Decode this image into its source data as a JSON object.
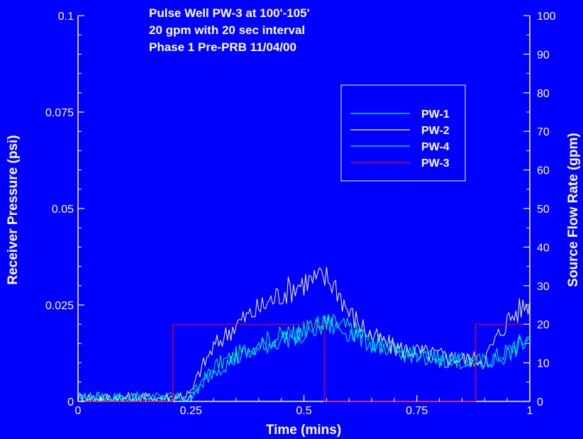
{
  "chart_data": {
    "type": "line",
    "title_lines": [
      "Pulse Well PW-3 at 100'-105'",
      "20 gpm with 20 sec  interval",
      "Phase 1 Pre-PRB   11/04/00"
    ],
    "xlabel": "Time (mins)",
    "ylabel_left": "Receiver Pressure (psi)",
    "ylabel_right": "Source Flow Rate (gpm)",
    "xlim": [
      0,
      1
    ],
    "ylim_left": [
      0,
      0.1
    ],
    "ylim_right": [
      0,
      100
    ],
    "x_ticks": [
      "0",
      "0.25",
      "0.5",
      "0.75",
      "1"
    ],
    "y_left_ticks": [
      "0",
      "0.025",
      "0.05",
      "0.075",
      "0.1"
    ],
    "y_right_ticks": [
      "0",
      "10",
      "20",
      "30",
      "40",
      "50",
      "60",
      "70",
      "80",
      "90",
      "100"
    ],
    "legend_position": "top-right",
    "series": [
      {
        "name": "PW-1",
        "axis": "left",
        "color": "#00ff7f",
        "x": [
          0,
          0.1,
          0.2,
          0.25,
          0.3,
          0.35,
          0.4,
          0.45,
          0.5,
          0.55,
          0.6,
          0.65,
          0.7,
          0.75,
          0.8,
          0.85,
          0.9,
          0.95,
          1.0
        ],
        "y": [
          0.001,
          0.001,
          0.001,
          0.001,
          0.009,
          0.012,
          0.015,
          0.017,
          0.018,
          0.0205,
          0.019,
          0.016,
          0.013,
          0.012,
          0.011,
          0.0105,
          0.0105,
          0.013,
          0.017
        ]
      },
      {
        "name": "PW-2",
        "axis": "left",
        "color": "#ffffa0",
        "x": [
          0,
          0.1,
          0.2,
          0.25,
          0.27,
          0.3,
          0.35,
          0.4,
          0.45,
          0.5,
          0.55,
          0.57,
          0.6,
          0.65,
          0.7,
          0.75,
          0.8,
          0.85,
          0.9,
          0.95,
          1.0
        ],
        "y": [
          0.001,
          0.001,
          0.001,
          0.002,
          0.008,
          0.014,
          0.02,
          0.024,
          0.028,
          0.031,
          0.032,
          0.03,
          0.023,
          0.017,
          0.014,
          0.013,
          0.012,
          0.011,
          0.011,
          0.021,
          0.026
        ]
      },
      {
        "name": "PW-4",
        "axis": "left",
        "color": "#00ffff",
        "x": [
          0,
          0.1,
          0.2,
          0.25,
          0.3,
          0.35,
          0.4,
          0.45,
          0.5,
          0.55,
          0.6,
          0.65,
          0.7,
          0.75,
          0.8,
          0.85,
          0.9,
          0.95,
          1.0
        ],
        "y": [
          0.001,
          0.001,
          0.001,
          0.001,
          0.008,
          0.011,
          0.014,
          0.016,
          0.018,
          0.02,
          0.018,
          0.015,
          0.013,
          0.012,
          0.011,
          0.0105,
          0.0095,
          0.012,
          0.016
        ]
      },
      {
        "name": "PW-3",
        "axis": "right",
        "color": "#ff0000",
        "x": [
          0,
          0.21,
          0.21,
          0.545,
          0.545,
          0.88,
          0.88,
          1.0
        ],
        "y": [
          0,
          0,
          20,
          20,
          0,
          0,
          20,
          20
        ]
      }
    ]
  }
}
